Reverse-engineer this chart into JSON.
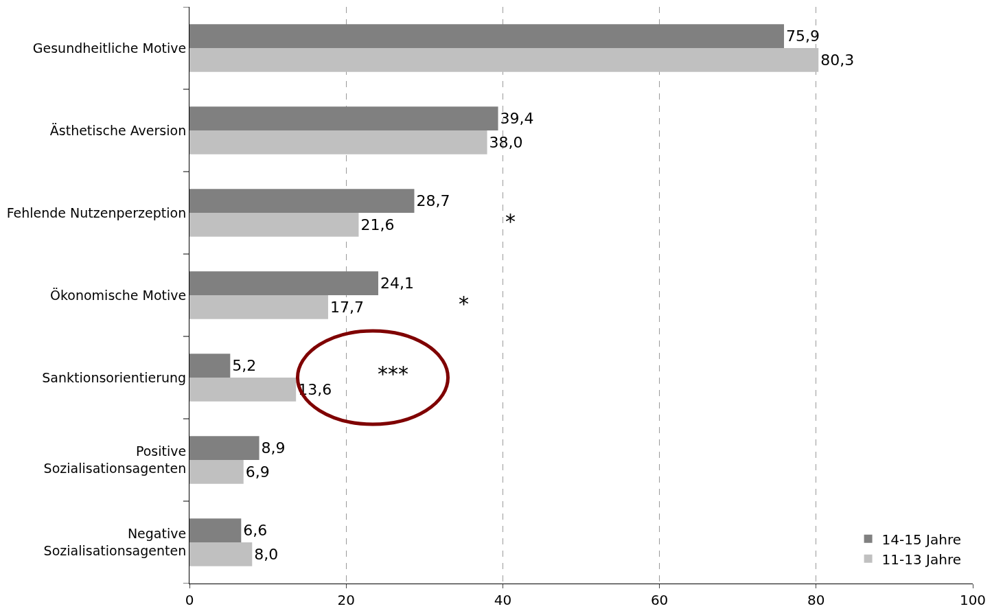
{
  "chart_data": {
    "type": "bar",
    "orientation": "horizontal",
    "categories": [
      "Gesundheitliche Motive",
      "Ästhetische Aversion",
      "Fehlende Nutzenperzeption",
      "Ökonomische Motive",
      "Sanktionsorientierung",
      "Positive\nSozialisationsagenten",
      "Negative\nSozialisationsagenten"
    ],
    "series": [
      {
        "name": "14-15 Jahre",
        "color": "#808080",
        "values": [
          75.9,
          39.4,
          28.7,
          24.1,
          5.2,
          8.9,
          6.6
        ],
        "value_labels": [
          "75,9",
          "39,4",
          "28,7",
          "24,1",
          "5,2",
          "8,9",
          "6,6"
        ]
      },
      {
        "name": "11-13 Jahre",
        "color": "#c0c0c0",
        "values": [
          80.3,
          38.0,
          21.6,
          17.7,
          13.6,
          6.9,
          8.0
        ],
        "value_labels": [
          "80,3",
          "38,0",
          "21,6",
          "17,7",
          "13,6",
          "6,9",
          "8,0"
        ]
      }
    ],
    "xlim": [
      0,
      100
    ],
    "xticks": [
      0,
      20,
      40,
      60,
      80,
      100
    ],
    "grid": "x",
    "legend": "bottom right",
    "annotations": [
      "*",
      "*",
      "***"
    ]
  }
}
